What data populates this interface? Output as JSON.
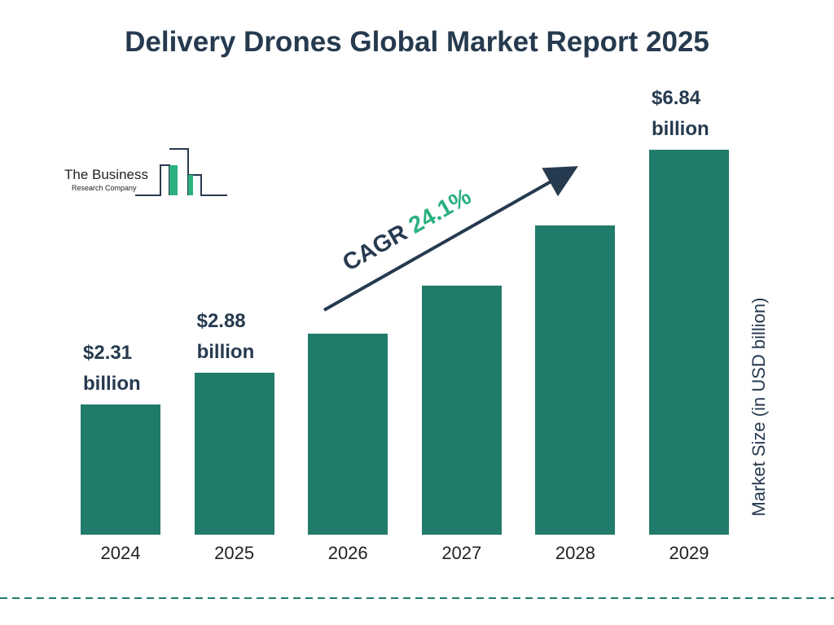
{
  "chart_data": {
    "type": "bar",
    "title": "Delivery Drones Global Market Report 2025",
    "categories": [
      "2024",
      "2025",
      "2026",
      "2027",
      "2028",
      "2029"
    ],
    "values": [
      2.31,
      2.88,
      3.57,
      4.43,
      5.5,
      6.84
    ],
    "value_labels": [
      "$2.31 billion",
      "$2.88 billion",
      null,
      null,
      null,
      "$6.84 billion"
    ],
    "color": "#217b6b",
    "y_axis_label": "Market Size (in USD billion)",
    "annotation": {
      "label": "CAGR",
      "value": "24.1%"
    }
  },
  "logo": {
    "line1": "The Business",
    "line2": "Research Company"
  }
}
